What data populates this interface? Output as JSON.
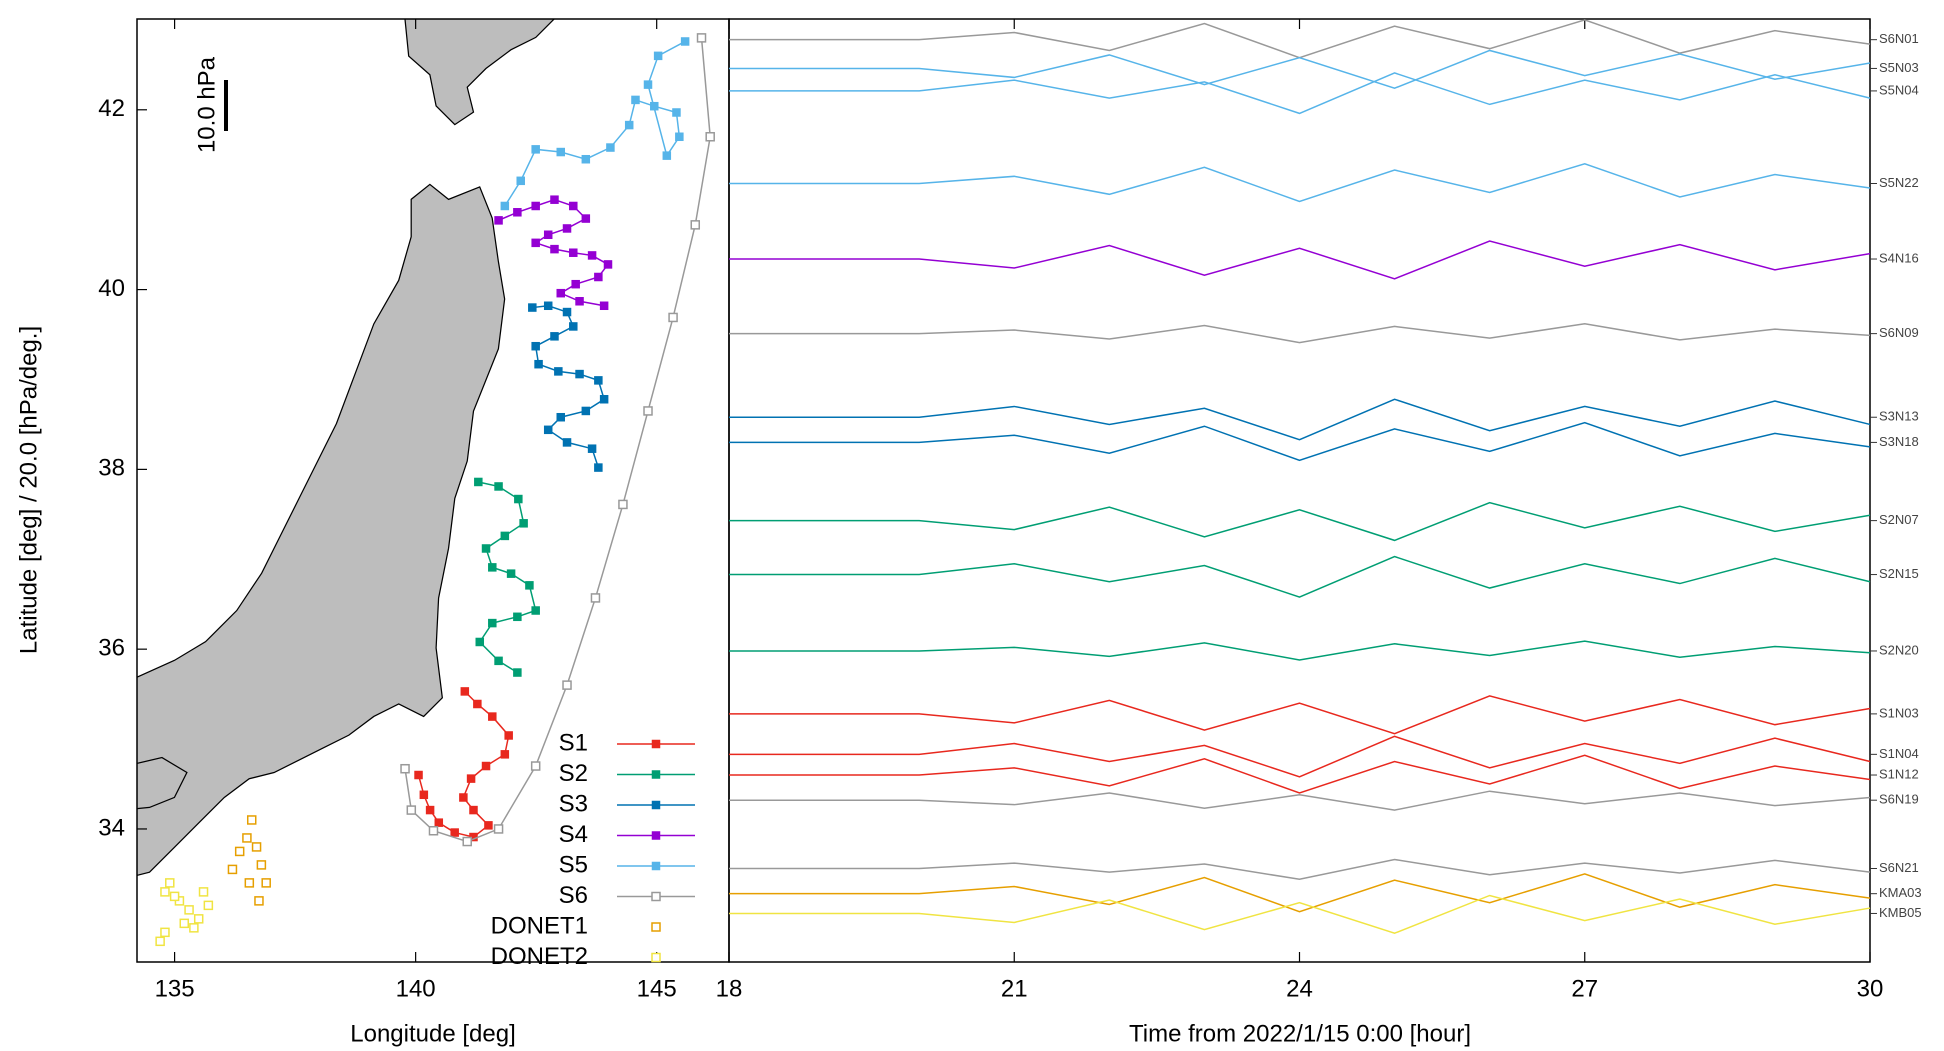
{
  "chart_data": [
    {
      "type": "scatter",
      "xlabel": "Longitude [deg]",
      "ylabel": "Latitude [deg] / 20.0 [hPa/deg.]",
      "annotation": "10.0 hPa",
      "xlim": [
        134.22,
        146.5
      ],
      "ylim": [
        32.52,
        43.01
      ],
      "xticks": [
        135,
        140,
        145
      ],
      "yticks": [
        34,
        36,
        38,
        40,
        42
      ],
      "legend": "lower right",
      "series": [
        {
          "name": "S1",
          "color": "#e8281e",
          "marker": "square-filled",
          "x": [
            141.02,
            141.28,
            141.59,
            141.93,
            141.85,
            141.46,
            141.15,
            140.99,
            141.2,
            141.51,
            141.2,
            140.81,
            140.48,
            140.3,
            140.17,
            140.06
          ],
          "y": [
            35.53,
            35.39,
            35.25,
            35.04,
            34.83,
            34.7,
            34.56,
            34.35,
            34.21,
            34.04,
            33.91,
            33.96,
            34.07,
            34.21,
            34.38,
            34.6
          ]
        },
        {
          "name": "S2",
          "color": "#009e73",
          "marker": "square-filled",
          "x": [
            141.3,
            141.72,
            142.13,
            142.24,
            141.85,
            141.46,
            141.59,
            141.98,
            142.36,
            142.49,
            142.11,
            141.59,
            141.33,
            141.72,
            142.11
          ],
          "y": [
            37.86,
            37.81,
            37.67,
            37.4,
            37.26,
            37.12,
            36.91,
            36.84,
            36.71,
            36.43,
            36.36,
            36.29,
            36.08,
            35.87,
            35.74
          ]
        },
        {
          "name": "S3",
          "color": "#0072b2",
          "marker": "square-filled",
          "x": [
            142.42,
            142.75,
            143.14,
            143.27,
            142.88,
            142.49,
            142.55,
            142.96,
            143.4,
            143.79,
            143.91,
            143.53,
            143.01,
            142.75,
            143.14,
            143.66,
            143.79
          ],
          "y": [
            39.8,
            39.82,
            39.75,
            39.59,
            39.48,
            39.37,
            39.17,
            39.09,
            39.06,
            38.99,
            38.78,
            38.65,
            38.58,
            38.44,
            38.3,
            38.23,
            38.02
          ]
        },
        {
          "name": "S4",
          "color": "#9400d3",
          "marker": "square-filled",
          "x": [
            141.72,
            142.11,
            142.49,
            142.88,
            143.27,
            143.53,
            143.14,
            142.75,
            142.49,
            142.88,
            143.27,
            143.66,
            143.99,
            143.79,
            143.32,
            143.01,
            143.4,
            143.91
          ],
          "y": [
            40.77,
            40.86,
            40.93,
            41.0,
            40.93,
            40.79,
            40.68,
            40.61,
            40.52,
            40.45,
            40.41,
            40.38,
            40.28,
            40.14,
            40.06,
            39.96,
            39.87,
            39.82
          ]
        },
        {
          "name": "S5",
          "color": "#56b4e9",
          "marker": "square-filled",
          "x": [
            141.85,
            142.18,
            142.49,
            143.01,
            143.53,
            144.04,
            144.43,
            144.56,
            144.95,
            145.41,
            145.47,
            145.21,
            144.82,
            145.03,
            145.59
          ],
          "y": [
            40.93,
            41.21,
            41.56,
            41.53,
            41.45,
            41.58,
            41.83,
            42.11,
            42.04,
            41.97,
            41.7,
            41.49,
            42.28,
            42.6,
            42.76
          ]
        },
        {
          "name": "S6",
          "color": "#999999",
          "marker": "square-open",
          "x": [
            145.93,
            146.11,
            145.8,
            145.34,
            144.82,
            144.3,
            143.73,
            143.14,
            142.49,
            141.72,
            141.07,
            140.37,
            139.91,
            139.78
          ],
          "y": [
            42.8,
            41.7,
            40.72,
            39.69,
            38.65,
            37.61,
            36.57,
            35.6,
            34.7,
            34.0,
            33.86,
            33.98,
            34.21,
            34.67
          ]
        },
        {
          "name": "DONET1",
          "color": "#e69f00",
          "marker": "square-open-nolines",
          "x": [
            136.2,
            136.35,
            136.5,
            136.6,
            136.7,
            136.8,
            136.9,
            136.55,
            136.75
          ],
          "y": [
            33.55,
            33.75,
            33.9,
            34.1,
            33.8,
            33.6,
            33.4,
            33.4,
            33.2
          ]
        },
        {
          "name": "DONET2",
          "color": "#f0e442",
          "marker": "square-open-nolines",
          "x": [
            134.7,
            134.8,
            134.9,
            135.1,
            135.3,
            135.5,
            135.7,
            135.4,
            135.2,
            135.0,
            134.8,
            135.6
          ],
          "y": [
            32.75,
            33.3,
            33.4,
            33.2,
            33.1,
            33.0,
            33.15,
            32.9,
            32.95,
            33.25,
            32.85,
            33.3
          ]
        }
      ]
    },
    {
      "type": "line",
      "xlabel": "Time from 2022/1/15 0:00 [hour]",
      "xlim": [
        18,
        30
      ],
      "ylim": [
        32.52,
        43.01
      ],
      "xticks": [
        18,
        21,
        24,
        27,
        30
      ],
      "x": [
        18,
        19,
        20,
        21,
        22,
        23,
        24,
        25,
        26,
        27,
        28,
        29,
        30
      ],
      "series": [
        {
          "name": "S6N01",
          "color": "#999999",
          "values": [
            42.78,
            42.78,
            42.78,
            42.86,
            42.66,
            42.96,
            42.58,
            42.93,
            42.68,
            43.0,
            42.63,
            42.88,
            42.73
          ]
        },
        {
          "name": "S5N03",
          "color": "#56b4e9",
          "values": [
            42.46,
            42.46,
            42.46,
            42.36,
            42.61,
            42.28,
            42.58,
            42.24,
            42.66,
            42.38,
            42.62,
            42.34,
            42.52
          ]
        },
        {
          "name": "S5N04",
          "color": "#56b4e9",
          "values": [
            42.21,
            42.21,
            42.21,
            42.33,
            42.13,
            42.31,
            41.96,
            42.41,
            42.06,
            42.33,
            42.11,
            42.39,
            42.13
          ]
        },
        {
          "name": "S5N22",
          "color": "#56b4e9",
          "values": [
            41.18,
            41.18,
            41.18,
            41.26,
            41.06,
            41.36,
            40.98,
            41.33,
            41.08,
            41.4,
            41.03,
            41.28,
            41.13
          ]
        },
        {
          "name": "S4N16",
          "color": "#9400d3",
          "values": [
            40.34,
            40.34,
            40.34,
            40.24,
            40.49,
            40.16,
            40.46,
            40.12,
            40.54,
            40.26,
            40.5,
            40.22,
            40.4
          ]
        },
        {
          "name": "S6N09",
          "color": "#999999",
          "values": [
            39.51,
            39.51,
            39.51,
            39.55,
            39.45,
            39.6,
            39.41,
            39.59,
            39.46,
            39.62,
            39.44,
            39.56,
            39.49
          ]
        },
        {
          "name": "S3N13",
          "color": "#0072b2",
          "values": [
            38.58,
            38.58,
            38.58,
            38.7,
            38.5,
            38.68,
            38.33,
            38.78,
            38.43,
            38.7,
            38.48,
            38.76,
            38.5
          ]
        },
        {
          "name": "S3N18",
          "color": "#0072b2",
          "values": [
            38.3,
            38.3,
            38.3,
            38.38,
            38.18,
            38.48,
            38.1,
            38.45,
            38.2,
            38.52,
            38.15,
            38.4,
            38.25
          ]
        },
        {
          "name": "S2N07",
          "color": "#009e73",
          "values": [
            37.43,
            37.43,
            37.43,
            37.33,
            37.58,
            37.25,
            37.55,
            37.21,
            37.63,
            37.35,
            37.59,
            37.31,
            37.49
          ]
        },
        {
          "name": "S2N15",
          "color": "#009e73",
          "values": [
            36.83,
            36.83,
            36.83,
            36.95,
            36.75,
            36.93,
            36.58,
            37.03,
            36.68,
            36.95,
            36.73,
            37.01,
            36.75
          ]
        },
        {
          "name": "S2N20",
          "color": "#009e73",
          "values": [
            35.98,
            35.98,
            35.98,
            36.02,
            35.92,
            36.07,
            35.88,
            36.06,
            35.93,
            36.09,
            35.91,
            36.03,
            35.96
          ]
        },
        {
          "name": "S1N03",
          "color": "#e8281e",
          "values": [
            35.28,
            35.28,
            35.28,
            35.18,
            35.43,
            35.1,
            35.4,
            35.06,
            35.48,
            35.2,
            35.44,
            35.16,
            35.34
          ]
        },
        {
          "name": "S1N04",
          "color": "#e8281e",
          "values": [
            34.83,
            34.83,
            34.83,
            34.95,
            34.75,
            34.93,
            34.58,
            35.03,
            34.68,
            34.95,
            34.73,
            35.01,
            34.75
          ]
        },
        {
          "name": "S1N12",
          "color": "#e8281e",
          "values": [
            34.6,
            34.6,
            34.6,
            34.68,
            34.48,
            34.78,
            34.4,
            34.75,
            34.5,
            34.82,
            34.45,
            34.7,
            34.55
          ]
        },
        {
          "name": "S6N19",
          "color": "#999999",
          "values": [
            34.32,
            34.32,
            34.32,
            34.27,
            34.4,
            34.23,
            34.38,
            34.21,
            34.42,
            34.28,
            34.4,
            34.26,
            34.35
          ]
        },
        {
          "name": "S6N21",
          "color": "#999999",
          "values": [
            33.56,
            33.56,
            33.56,
            33.62,
            33.52,
            33.61,
            33.44,
            33.66,
            33.49,
            33.62,
            33.51,
            33.65,
            33.52
          ]
        },
        {
          "name": "KMA03",
          "color": "#e69f00",
          "values": [
            33.28,
            33.28,
            33.28,
            33.36,
            33.16,
            33.46,
            33.08,
            33.43,
            33.18,
            33.5,
            33.13,
            33.38,
            33.23
          ]
        },
        {
          "name": "KMB05",
          "color": "#f0e442",
          "values": [
            33.06,
            33.06,
            33.06,
            32.96,
            33.21,
            32.88,
            33.18,
            32.84,
            33.26,
            32.98,
            33.22,
            32.94,
            33.12
          ]
        }
      ]
    }
  ]
}
